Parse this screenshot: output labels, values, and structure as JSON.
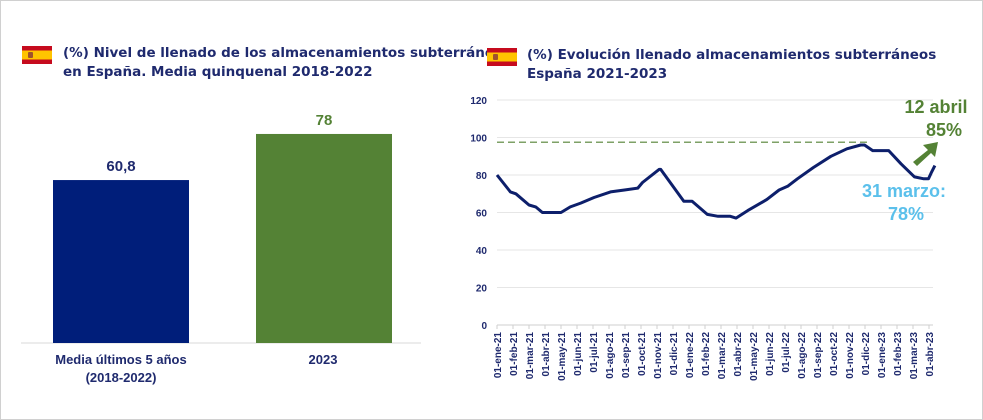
{
  "left_panel": {
    "title_line1": "(%) Nivel de llenado de los almacenamientos subterráneos",
    "title_line2": "en España. Media quinquenal 2018-2022",
    "flag_icon": "spain-flag-icon"
  },
  "right_panel": {
    "title_line1": "(%) Evolución llenado almacenamientos subterráneos",
    "title_line2": "España 2021-2023",
    "flag_icon": "spain-flag-icon"
  },
  "chart_data": [
    {
      "type": "bar",
      "categories": [
        "Media últimos 5 años (2018-2022)",
        "2023"
      ],
      "category_lines": [
        [
          "Media últimos 5 años",
          "(2018-2022)"
        ],
        [
          "2023"
        ]
      ],
      "values": [
        60.8,
        78
      ],
      "data_labels": [
        "60,8",
        "78"
      ],
      "colors": [
        "#001e7a",
        "#548235"
      ],
      "label_colors": [
        "#1f2a6e",
        "#548235"
      ],
      "grid": false
    },
    {
      "type": "line",
      "ylim": [
        0,
        120
      ],
      "yticks": [
        "0",
        "20",
        "40",
        "60",
        "80",
        "100",
        "120"
      ],
      "xtick_labels": [
        "01-ene-21",
        "01-feb-21",
        "01-mar-21",
        "01-abr-21",
        "01-may-21",
        "01-jun-21",
        "01-jul-21",
        "01-ago-21",
        "01-sep-21",
        "01-oct-21",
        "01-nov-21",
        "01-dic-21",
        "01-ene-22",
        "01-feb-22",
        "01-mar-22",
        "01-abr-22",
        "01-may-22",
        "01-jun-22",
        "01-jul-22",
        "01-ago-22",
        "01-sep-22",
        "01-oct-22",
        "01-nov-22",
        "01-dic-22",
        "01-ene-23",
        "01-feb-23",
        "01-mar-23",
        "01-abr-23"
      ],
      "grid": true,
      "line_color": "#0d1f6b",
      "reference_line": {
        "value": 97.5,
        "color": "#548235",
        "style": "dashed"
      },
      "series": [
        {
          "x": [
            "2021-01-01",
            "2021-01-27",
            "2021-02-06",
            "2021-03-01",
            "2021-03-14",
            "2021-03-27",
            "2021-05-01",
            "2021-05-19",
            "2021-06-08",
            "2021-07-03",
            "2021-08-04",
            "2021-08-31",
            "2021-09-25",
            "2021-10-04",
            "2021-11-05",
            "2021-11-08",
            "2021-12-22",
            "2022-01-07",
            "2022-02-05",
            "2022-02-24",
            "2022-03-19",
            "2022-03-30",
            "2022-04-21",
            "2022-05-16",
            "2022-05-28",
            "2022-06-20",
            "2022-07-06",
            "2022-07-25",
            "2022-08-25",
            "2022-09-27",
            "2022-10-28",
            "2022-11-23",
            "2022-11-30",
            "2022-12-16",
            "2023-01-04",
            "2023-01-16",
            "2023-02-08",
            "2023-03-04",
            "2023-03-22",
            "2023-03-31",
            "2023-04-05",
            "2023-04-12"
          ],
          "y": [
            80,
            71,
            70,
            64,
            63,
            60,
            60,
            63,
            65,
            68,
            71,
            72,
            73,
            76,
            83,
            83,
            66,
            66,
            59,
            58,
            58,
            57,
            61,
            65,
            67,
            72,
            74,
            78,
            84,
            90,
            94,
            96,
            96,
            93,
            93,
            93,
            86,
            79,
            78,
            78,
            81,
            85
          ]
        }
      ],
      "annotations": [
        {
          "line1": "12 abril",
          "line2": "85%",
          "color": "#548235",
          "arrow": "up-right"
        },
        {
          "line1": "31 marzo:",
          "line2": "78%",
          "color": "#5bc0eb"
        }
      ]
    }
  ]
}
